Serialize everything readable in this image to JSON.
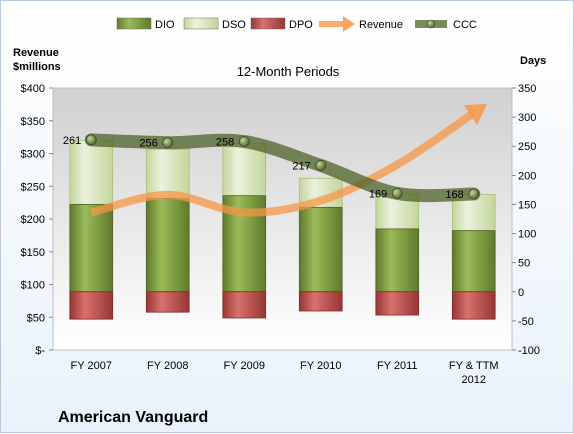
{
  "chart_data": {
    "type": "bar",
    "title": "12-Month Periods",
    "company": "American Vanguard",
    "left_axis_title": [
      "Revenue",
      "$millions"
    ],
    "right_axis_title": "Days",
    "categories": [
      [
        "FY 2007"
      ],
      [
        "FY 2008"
      ],
      [
        "FY 2009"
      ],
      [
        "FY 2010"
      ],
      [
        "FY 2011"
      ],
      [
        "FY & TTM",
        "2012"
      ]
    ],
    "left_ticks": [
      "$400",
      "$350",
      "$300",
      "$250",
      "$200",
      "$150",
      "$100",
      "$50",
      "$-"
    ],
    "left_ylim": [
      0,
      400
    ],
    "right_ticks": [
      "350",
      "300",
      "250",
      "200",
      "150",
      "100",
      "50",
      "0",
      "-50",
      "-100"
    ],
    "right_ylim": [
      -100,
      350
    ],
    "legend": [
      {
        "name": "DIO",
        "kind": "box",
        "color": "#77933c"
      },
      {
        "name": "DSO",
        "kind": "box",
        "color": "#d7e4bd"
      },
      {
        "name": "DPO",
        "kind": "box",
        "color": "#c0504d"
      },
      {
        "name": "Revenue",
        "kind": "arrow",
        "color": "#f79646"
      },
      {
        "name": "CCC",
        "kind": "line",
        "color": "#4f6228"
      }
    ],
    "series": [
      {
        "name": "DIO",
        "axis": "right",
        "values": [
          150,
          160,
          165,
          145,
          108,
          105
        ]
      },
      {
        "name": "DSO",
        "axis": "right",
        "values": [
          110,
          85,
          90,
          50,
          60,
          62
        ]
      },
      {
        "name": "DPO",
        "axis": "right",
        "values": [
          -47,
          -35,
          -45,
          -33,
          -40,
          -47
        ]
      },
      {
        "name": "Revenue",
        "axis": "left",
        "values": [
          210,
          237,
          210,
          228,
          283,
          362
        ]
      },
      {
        "name": "CCC",
        "axis": "right",
        "values": [
          261,
          256,
          258,
          217,
          169,
          168
        ],
        "labels": [
          "261",
          "256",
          "258",
          "217",
          "169",
          "168"
        ]
      }
    ],
    "grid": false,
    "legend_position": "top"
  }
}
